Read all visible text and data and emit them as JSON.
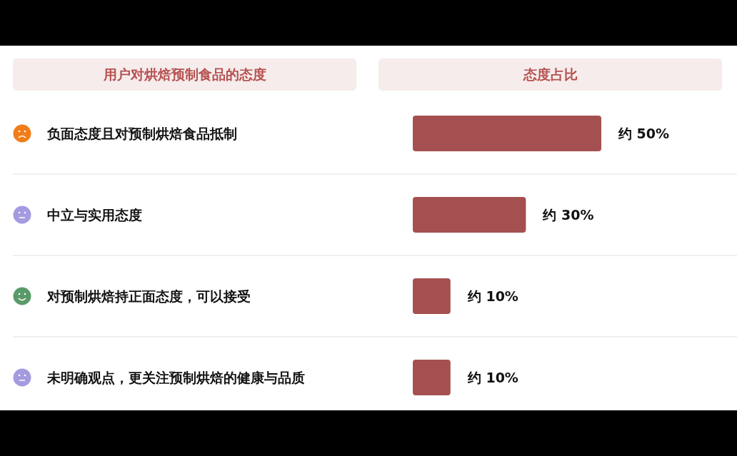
{
  "chart_data": {
    "type": "bar",
    "orientation": "horizontal",
    "ylabel": "用户对烘焙预制食品的态度",
    "xlabel": "态度占比",
    "categories": [
      "负面态度且对预制烘焙食品抵制",
      "中立与实用态度",
      "对预制烘焙持正面态度，可以接受",
      "未明确观点，更关注预制烘焙的健康与品质"
    ],
    "values": [
      50,
      30,
      10,
      10
    ],
    "value_labels": [
      "约 50%",
      "约 30%",
      "约 10%",
      "约 10%"
    ],
    "color": "#a55050"
  }
}
